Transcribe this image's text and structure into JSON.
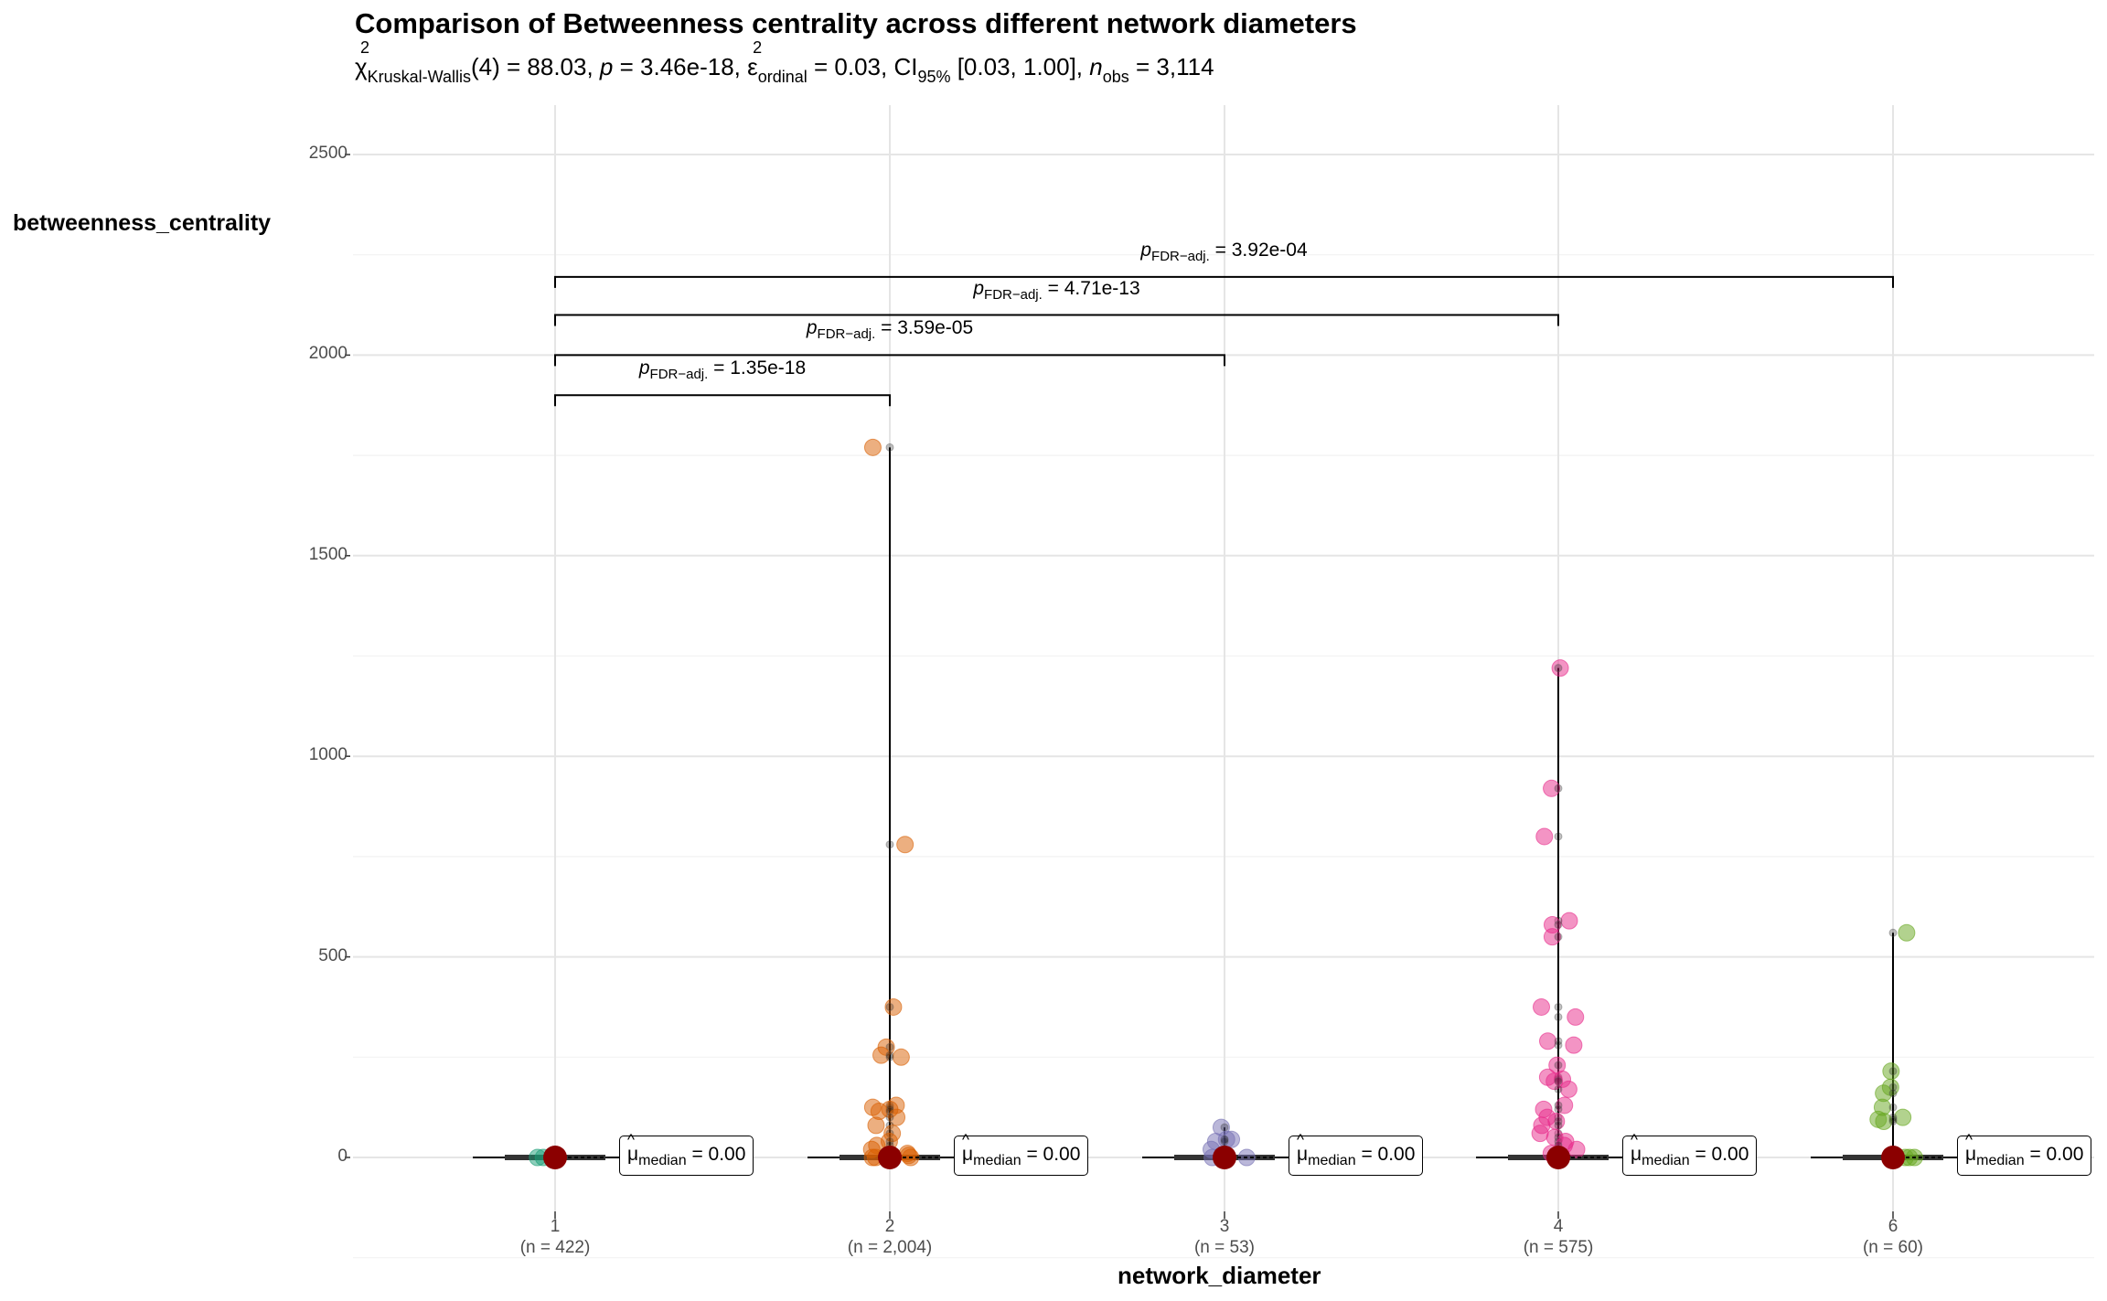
{
  "chart_data": {
    "type": "violin-box-scatter",
    "title": "Comparison of Betweenness centrality across different network diameters",
    "subtitle": {
      "chi": "χ",
      "chi_sup": "2",
      "chi_sub": "Kruskal-Wallis",
      "df": "(4) = 88.03, ",
      "p": "p",
      "p_val": " = 3.46e-18, ",
      "eps": "ε",
      "eps_sup": "2",
      "eps_sub": "ordinal",
      "eps_val": " = 0.03, CI",
      "ci_sub": "95%",
      "ci_val": " [0.03, 1.00], ",
      "n": "n",
      "n_sub": "obs",
      "n_val": " = 3,114"
    },
    "xlabel": "network_diameter",
    "ylabel": "betweenness_centrality",
    "ylim": [
      -130,
      2700
    ],
    "yticks": [
      "0",
      "500",
      "1000",
      "1500",
      "2000",
      "2500"
    ],
    "grid": true,
    "groups": [
      {
        "label": "1",
        "n_label": "(n = 422)",
        "color": "#1B9E77",
        "median_label": "= 0.00",
        "points": [
          0,
          0,
          0,
          0,
          0,
          0
        ]
      },
      {
        "label": "2",
        "n_label": "(n = 2,004)",
        "color": "#D95F02",
        "median_label": "= 0.00",
        "points": [
          1770,
          780,
          375,
          275,
          255,
          250,
          130,
          125,
          120,
          115,
          100,
          80,
          60,
          40,
          30,
          20,
          10,
          5,
          0,
          0,
          0,
          0
        ]
      },
      {
        "label": "3",
        "n_label": "(n = 53)",
        "color": "#7570B3",
        "median_label": "= 0.00",
        "points": [
          75,
          45,
          45,
          40,
          20,
          0,
          0,
          0
        ]
      },
      {
        "label": "4",
        "n_label": "(n = 575)",
        "color": "#E7298A",
        "median_label": "= 0.00",
        "points": [
          1220,
          920,
          800,
          590,
          580,
          550,
          375,
          350,
          290,
          280,
          230,
          200,
          195,
          190,
          170,
          130,
          120,
          100,
          90,
          80,
          60,
          50,
          40,
          30,
          20,
          10,
          0,
          0,
          0
        ]
      },
      {
        "label": "6",
        "n_label": "(n = 60)",
        "color": "#66A61E",
        "median_label": "= 0.00",
        "points": [
          560,
          215,
          175,
          160,
          125,
          100,
          95,
          90,
          0,
          0,
          0
        ]
      }
    ],
    "median_symbol": "μ",
    "median_sub": "median",
    "median_values": [
      0,
      0,
      0,
      0,
      0
    ],
    "median_color": "#8B0000",
    "comparisons": [
      {
        "from": "1",
        "to": "2",
        "y": 1900,
        "p": "p",
        "p_sub": "FDR−adj.",
        "label": " = 1.35e-18"
      },
      {
        "from": "1",
        "to": "3",
        "y": 2000,
        "p": "p",
        "p_sub": "FDR−adj.",
        "label": " = 3.59e-05"
      },
      {
        "from": "1",
        "to": "4",
        "y": 2100,
        "p": "p",
        "p_sub": "FDR−adj.",
        "label": " = 4.71e-13"
      },
      {
        "from": "1",
        "to": "6",
        "y": 2195,
        "p": "p",
        "p_sub": "FDR−adj.",
        "label": " = 3.92e-04"
      }
    ]
  }
}
